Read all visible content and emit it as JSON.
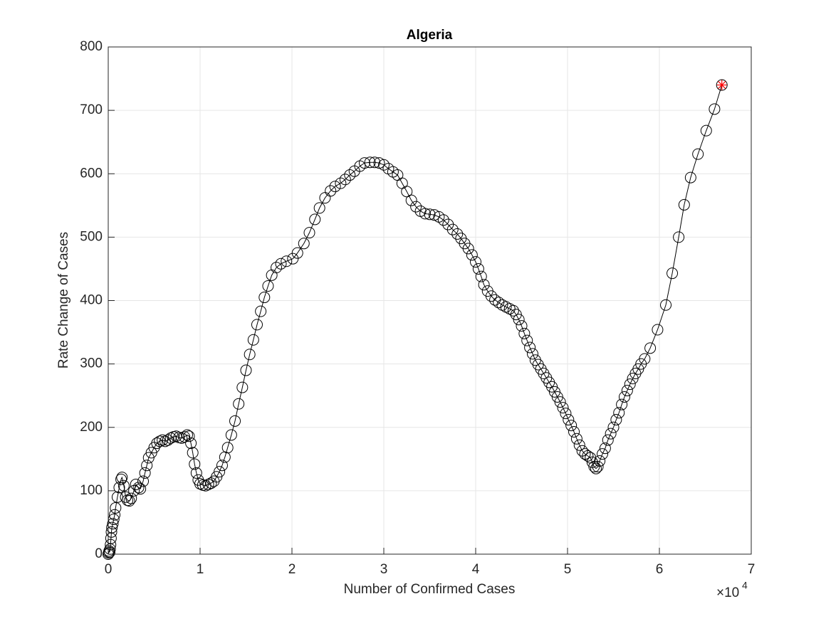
{
  "chart_data": {
    "type": "line-scatter",
    "title": "Algeria",
    "x_label": "Number of Confirmed Cases",
    "y_label": "Rate Change of Cases",
    "x_multiplier": "×10",
    "x_multiplier_exp": "4",
    "color": "#000000",
    "marker": "circle",
    "grid": true,
    "xlim": [
      0,
      70000
    ],
    "ylim": [
      0,
      800
    ],
    "xticks": [
      {
        "value": 0,
        "label": "0"
      },
      {
        "value": 10000,
        "label": "1"
      },
      {
        "value": 20000,
        "label": "2"
      },
      {
        "value": 30000,
        "label": "3"
      },
      {
        "value": 40000,
        "label": "4"
      },
      {
        "value": 50000,
        "label": "5"
      },
      {
        "value": 60000,
        "label": "6"
      },
      {
        "value": 70000,
        "label": "7"
      }
    ],
    "yticks": [
      0,
      100,
      200,
      300,
      400,
      500,
      600,
      700,
      800
    ],
    "x": [
      0,
      50,
      100,
      150,
      200,
      250,
      300,
      350,
      400,
      500,
      600,
      700,
      800,
      1000,
      1200,
      1400,
      1500,
      1700,
      1900,
      2100,
      2300,
      2500,
      2800,
      3000,
      3300,
      3500,
      3800,
      4000,
      4200,
      4400,
      4700,
      5000,
      5300,
      5600,
      5900,
      6200,
      6500,
      6800,
      7100,
      7400,
      7700,
      8000,
      8300,
      8600,
      8800,
      9000,
      9200,
      9400,
      9600,
      9800,
      10000,
      10300,
      10600,
      10900,
      11200,
      11500,
      11800,
      12100,
      12400,
      12700,
      13000,
      13400,
      13800,
      14200,
      14600,
      15000,
      15400,
      15800,
      16200,
      16600,
      17000,
      17400,
      17800,
      18300,
      18800,
      19400,
      20100,
      20600,
      21300,
      21900,
      22500,
      23000,
      23600,
      24200,
      24700,
      25300,
      25800,
      26300,
      26800,
      27400,
      27900,
      28500,
      29000,
      29500,
      30000,
      30500,
      31000,
      31500,
      32000,
      32500,
      33000,
      33500,
      34000,
      34500,
      35000,
      35500,
      36000,
      36500,
      37000,
      37500,
      38000,
      38400,
      38800,
      39200,
      39600,
      40000,
      40300,
      40600,
      40900,
      41300,
      41700,
      42100,
      42500,
      42900,
      43300,
      43700,
      44100,
      44400,
      44700,
      45000,
      45300,
      45600,
      45900,
      46200,
      46500,
      46800,
      47100,
      47400,
      47700,
      48000,
      48300,
      48600,
      48900,
      49200,
      49500,
      49800,
      50100,
      50400,
      50700,
      51000,
      51300,
      51600,
      51900,
      52200,
      52500,
      52700,
      52900,
      53100,
      53300,
      53500,
      53800,
      54100,
      54400,
      54700,
      55000,
      55300,
      55600,
      55900,
      56200,
      56500,
      56800,
      57100,
      57400,
      57700,
      58000,
      58400,
      59000,
      59800,
      60700,
      61400,
      62100,
      62700,
      63400,
      64200,
      65100,
      66000,
      66800
    ],
    "values": [
      0,
      2,
      5,
      3,
      8,
      15,
      25,
      35,
      42,
      48,
      55,
      62,
      73,
      90,
      105,
      118,
      121,
      108,
      90,
      85,
      84,
      88,
      100,
      110,
      105,
      103,
      115,
      128,
      140,
      152,
      160,
      168,
      175,
      178,
      180,
      178,
      180,
      183,
      185,
      186,
      184,
      183,
      185,
      188,
      186,
      175,
      160,
      142,
      128,
      117,
      111,
      109,
      108,
      110,
      112,
      115,
      122,
      130,
      140,
      153,
      168,
      188,
      210,
      237,
      263,
      290,
      315,
      338,
      362,
      383,
      405,
      423,
      440,
      452,
      458,
      462,
      466,
      475,
      490,
      507,
      528,
      546,
      562,
      573,
      580,
      585,
      591,
      598,
      604,
      612,
      617,
      618,
      618,
      617,
      614,
      608,
      603,
      598,
      585,
      572,
      558,
      548,
      541,
      537,
      536,
      535,
      532,
      527,
      520,
      512,
      505,
      498,
      490,
      482,
      472,
      461,
      450,
      438,
      425,
      415,
      407,
      401,
      397,
      393,
      390,
      387,
      384,
      378,
      370,
      360,
      348,
      337,
      326,
      316,
      306,
      299,
      292,
      285,
      278,
      271,
      264,
      256,
      248,
      240,
      231,
      222,
      212,
      203,
      193,
      182,
      172,
      163,
      158,
      155,
      152,
      145,
      138,
      135,
      138,
      147,
      158,
      167,
      180,
      190,
      200,
      212,
      223,
      236,
      248,
      258,
      268,
      277,
      285,
      292,
      300,
      308,
      325,
      354,
      393,
      443,
      500,
      551,
      594,
      631,
      668,
      702,
      740
    ],
    "highlight": {
      "x": 66800,
      "y": 740,
      "color": "#ff0000"
    }
  }
}
